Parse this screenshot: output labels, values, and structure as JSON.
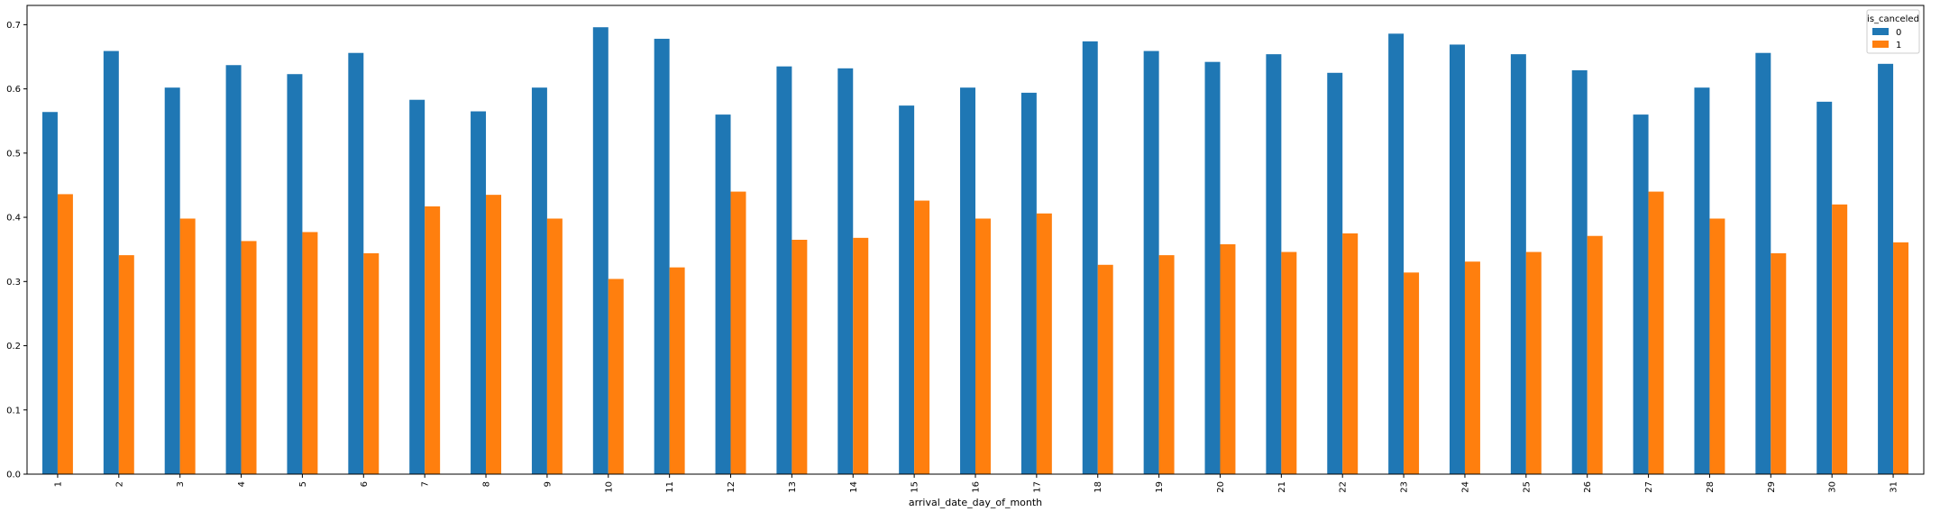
{
  "chart_data": {
    "type": "bar",
    "xlabel": "arrival_date_day_of_month",
    "ylabel": "",
    "ylim": [
      0,
      0.73
    ],
    "yticks": [
      0.0,
      0.1,
      0.2,
      0.3,
      0.4,
      0.5,
      0.6,
      0.7
    ],
    "ytick_labels": [
      "0.0",
      "0.1",
      "0.2",
      "0.3",
      "0.4",
      "0.5",
      "0.6",
      "0.7"
    ],
    "grid": false,
    "legend": {
      "title": "is_canceled",
      "placement": "top-right"
    },
    "categories": [
      "1",
      "2",
      "3",
      "4",
      "5",
      "6",
      "7",
      "8",
      "9",
      "10",
      "11",
      "12",
      "13",
      "14",
      "15",
      "16",
      "17",
      "18",
      "19",
      "20",
      "21",
      "22",
      "23",
      "24",
      "25",
      "26",
      "27",
      "28",
      "29",
      "30",
      "31"
    ],
    "series": [
      {
        "name": "0",
        "color": "#1f77b4",
        "values": [
          0.564,
          0.659,
          0.602,
          0.637,
          0.623,
          0.656,
          0.583,
          0.565,
          0.602,
          0.696,
          0.678,
          0.56,
          0.635,
          0.632,
          0.574,
          0.602,
          0.594,
          0.674,
          0.659,
          0.642,
          0.654,
          0.625,
          0.686,
          0.669,
          0.654,
          0.629,
          0.56,
          0.602,
          0.656,
          0.58,
          0.639
        ]
      },
      {
        "name": "1",
        "color": "#ff7f0e",
        "values": [
          0.436,
          0.341,
          0.398,
          0.363,
          0.377,
          0.344,
          0.417,
          0.435,
          0.398,
          0.304,
          0.322,
          0.44,
          0.365,
          0.368,
          0.426,
          0.398,
          0.406,
          0.326,
          0.341,
          0.358,
          0.346,
          0.375,
          0.314,
          0.331,
          0.346,
          0.371,
          0.44,
          0.398,
          0.344,
          0.42,
          0.361
        ]
      }
    ]
  }
}
